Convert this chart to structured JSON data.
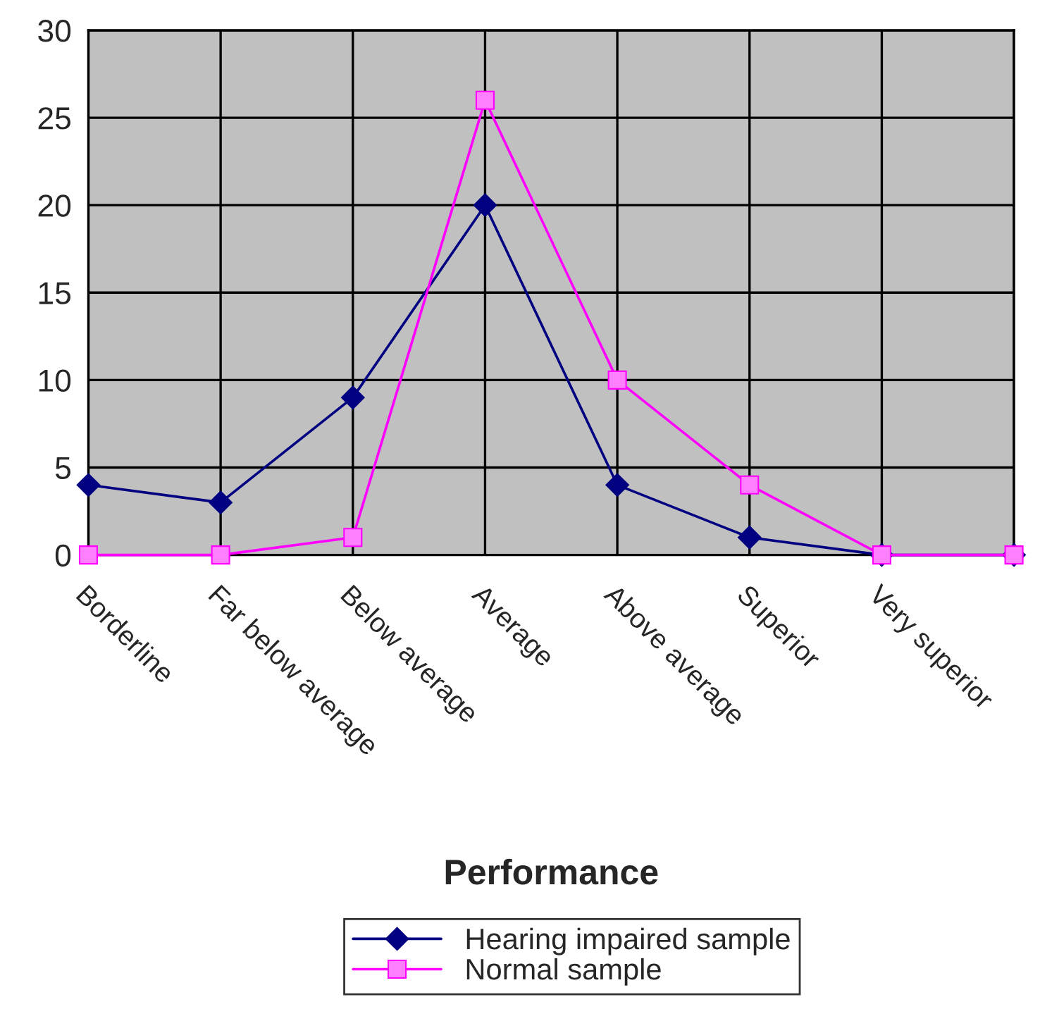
{
  "chart_data": {
    "type": "line",
    "xlabel": "Performance",
    "categories": [
      "Borderline",
      "Far below average",
      "Below average",
      "Average",
      "Above average",
      "Superior",
      "Very superior",
      null
    ],
    "series": [
      {
        "name": "Hearing impaired sample",
        "color": "#000080",
        "marker": "diamond",
        "values": [
          4,
          3,
          9,
          20,
          4,
          1,
          0,
          0
        ]
      },
      {
        "name": "Normal sample",
        "color": "#ff00ff",
        "marker": "square",
        "values": [
          0,
          0,
          1,
          26,
          10,
          4,
          0,
          0
        ]
      }
    ],
    "ylim": [
      0,
      30
    ],
    "yticks": [
      0,
      5,
      10,
      15,
      20,
      25,
      30
    ],
    "grid": true,
    "legend": "bottom",
    "line_style": "solid"
  }
}
